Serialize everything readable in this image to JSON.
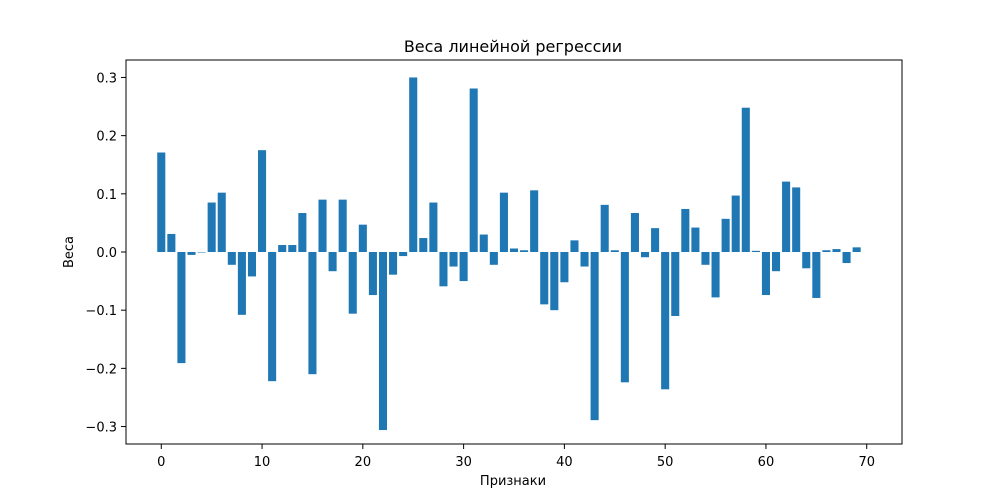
{
  "chart_data": {
    "type": "bar",
    "title": "Веса линейной регрессии",
    "xlabel": "Признаки",
    "ylabel": "Веса",
    "xlim": [
      -3.5,
      73.5
    ],
    "ylim": [
      -0.33,
      0.33
    ],
    "xticks": [
      0,
      10,
      20,
      30,
      40,
      50,
      60,
      70
    ],
    "yticks": [
      -0.3,
      -0.2,
      -0.1,
      0.0,
      0.1,
      0.2,
      0.3
    ],
    "ytick_labels": [
      "−0.3",
      "−0.2",
      "−0.1",
      "0.0",
      "0.1",
      "0.2",
      "0.3"
    ],
    "bar_color": "#1f77b4",
    "grid": false,
    "x": [
      0,
      1,
      2,
      3,
      4,
      5,
      6,
      7,
      8,
      9,
      10,
      11,
      12,
      13,
      14,
      15,
      16,
      17,
      18,
      19,
      20,
      21,
      22,
      23,
      24,
      25,
      26,
      27,
      28,
      29,
      30,
      31,
      32,
      33,
      34,
      35,
      36,
      37,
      38,
      39,
      40,
      41,
      42,
      43,
      44,
      45,
      46,
      47,
      48,
      49,
      50,
      51,
      52,
      53,
      54,
      55,
      56,
      57,
      58,
      59,
      60,
      61,
      62,
      63,
      64,
      65,
      66,
      67,
      68,
      69
    ],
    "values": [
      0.171,
      0.031,
      -0.191,
      -0.005,
      0.0,
      0.085,
      0.102,
      -0.022,
      -0.108,
      -0.042,
      0.175,
      -0.222,
      0.012,
      0.012,
      0.067,
      -0.21,
      0.09,
      -0.033,
      0.09,
      -0.106,
      0.047,
      -0.074,
      -0.306,
      -0.039,
      -0.007,
      0.3,
      0.024,
      0.085,
      -0.059,
      -0.025,
      -0.05,
      0.281,
      0.03,
      -0.022,
      0.102,
      0.006,
      0.003,
      0.106,
      -0.09,
      -0.1,
      -0.052,
      0.02,
      -0.025,
      -0.289,
      0.081,
      0.003,
      -0.224,
      0.067,
      -0.009,
      0.041,
      -0.236,
      -0.11,
      0.074,
      0.042,
      -0.022,
      -0.078,
      0.057,
      0.097,
      0.248,
      0.002,
      -0.074,
      -0.033,
      0.121,
      0.111,
      -0.028,
      -0.079,
      0.003,
      0.005,
      -0.019,
      0.008
    ]
  }
}
